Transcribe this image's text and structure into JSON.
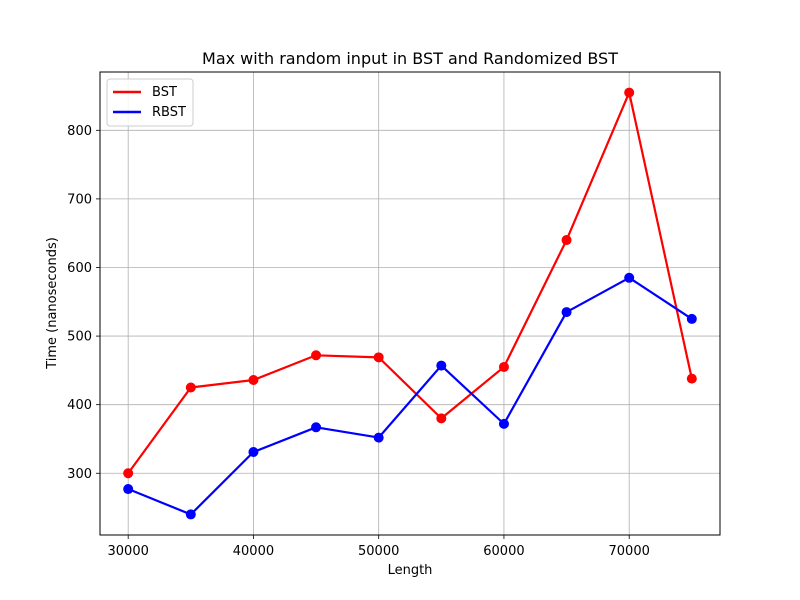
{
  "chart_data": {
    "type": "line",
    "title": "Max with random input in BST and Randomized BST",
    "xlabel": "Length",
    "ylabel": "Time (nanoseconds)",
    "x": [
      30000,
      35000,
      40000,
      45000,
      50000,
      55000,
      60000,
      65000,
      70000,
      75000
    ],
    "xlim": [
      27750,
      77250
    ],
    "ylim": [
      210,
      885
    ],
    "xticks": [
      30000,
      40000,
      50000,
      60000,
      70000
    ],
    "yticks": [
      300,
      400,
      500,
      600,
      700,
      800
    ],
    "grid": true,
    "legend_position": "top-left",
    "series": [
      {
        "name": "BST",
        "color": "#ff0000",
        "values": [
          300,
          425,
          436,
          472,
          469,
          380,
          455,
          640,
          855,
          438
        ]
      },
      {
        "name": "RBST",
        "color": "#0000ff",
        "values": [
          277,
          240,
          331,
          367,
          352,
          457,
          372,
          535,
          585,
          525
        ]
      }
    ]
  }
}
